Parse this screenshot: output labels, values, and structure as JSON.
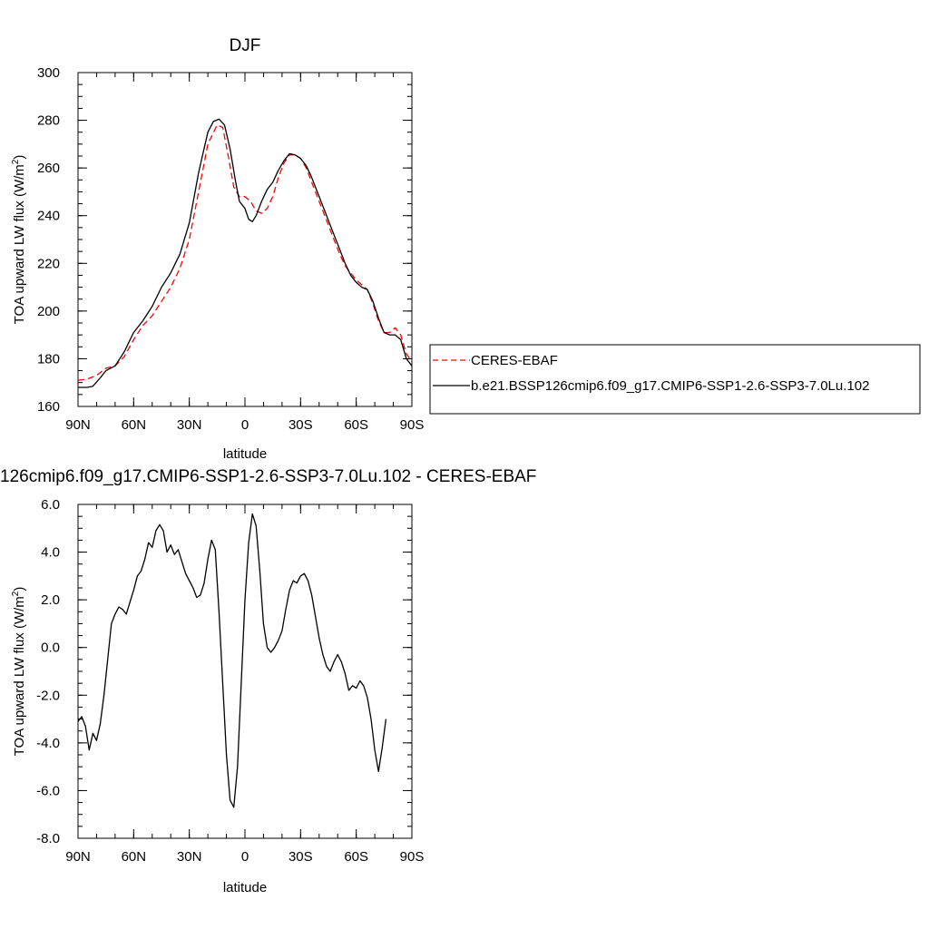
{
  "chart_data": [
    {
      "type": "line",
      "title": "DJF",
      "xlabel": "latitude",
      "ylabel_main": "TOA upward LW flux (W/m",
      "ylabel_sup": "2",
      "ylabel_close": ")",
      "xlim": [
        90,
        -90
      ],
      "ylim": [
        160,
        300
      ],
      "xticks": [
        90,
        60,
        30,
        0,
        -30,
        -60,
        -90
      ],
      "xtick_labels": [
        "90N",
        "60N",
        "30N",
        "0",
        "30S",
        "60S",
        "90S"
      ],
      "yticks": [
        160,
        180,
        200,
        220,
        240,
        260,
        280,
        300
      ],
      "ytick_labels": [
        "160",
        "180",
        "200",
        "220",
        "240",
        "260",
        "280",
        "300"
      ],
      "grid": false,
      "legend": "right",
      "series": [
        {
          "name": "CERES-EBAF",
          "color": "#ff0000",
          "dash": "dashed",
          "points": [
            [
              90,
              171
            ],
            [
              85,
              171.5
            ],
            [
              80,
              173
            ],
            [
              75,
              176
            ],
            [
              70,
              177
            ],
            [
              65,
              181
            ],
            [
              60,
              188
            ],
            [
              55,
              194
            ],
            [
              50,
              198
            ],
            [
              45,
              204
            ],
            [
              40,
              210
            ],
            [
              35,
              218
            ],
            [
              30,
              230
            ],
            [
              25,
              250
            ],
            [
              20,
              270
            ],
            [
              15,
              278
            ],
            [
              12,
              277
            ],
            [
              9,
              265
            ],
            [
              6,
              252
            ],
            [
              3,
              248
            ],
            [
              0,
              248
            ],
            [
              -3,
              246
            ],
            [
              -6,
              242
            ],
            [
              -9,
              241
            ],
            [
              -12,
              243
            ],
            [
              -15,
              248
            ],
            [
              -18,
              256
            ],
            [
              -21,
              262
            ],
            [
              -24,
              265.5
            ],
            [
              -27,
              265.5
            ],
            [
              -30,
              264
            ],
            [
              -33,
              260
            ],
            [
              -36,
              254
            ],
            [
              -39,
              248
            ],
            [
              -42,
              242
            ],
            [
              -45,
              236
            ],
            [
              -48,
              230
            ],
            [
              -51,
              224
            ],
            [
              -54,
              219
            ],
            [
              -57,
              216
            ],
            [
              -60,
              213
            ],
            [
              -63,
              211
            ],
            [
              -66,
              209
            ],
            [
              -69,
              203
            ],
            [
              -72,
              196
            ],
            [
              -75,
              191
            ],
            [
              -78,
              191
            ],
            [
              -81,
              193
            ],
            [
              -84,
              190
            ],
            [
              -87,
              182
            ],
            [
              -90,
              179
            ]
          ]
        },
        {
          "name": "b.e21.BSSP126cmip6.f09_g17.CMIP6-SSP1-2.6-SSP3-7.0Lu.102",
          "color": "#000000",
          "dash": "solid",
          "points": [
            [
              90,
              168
            ],
            [
              85,
              168
            ],
            [
              82,
              168.5
            ],
            [
              78,
              172
            ],
            [
              75,
              175
            ],
            [
              70,
              177
            ],
            [
              65,
              183
            ],
            [
              60,
              191
            ],
            [
              55,
              196
            ],
            [
              50,
              202
            ],
            [
              45,
              210
            ],
            [
              40,
              216
            ],
            [
              35,
              224
            ],
            [
              30,
              237
            ],
            [
              25,
              258
            ],
            [
              20,
              275
            ],
            [
              17,
              279.5
            ],
            [
              14,
              280.5
            ],
            [
              11,
              278
            ],
            [
              8,
              268
            ],
            [
              5,
              254
            ],
            [
              3,
              246
            ],
            [
              0,
              243
            ],
            [
              -2,
              238.5
            ],
            [
              -4,
              237.5
            ],
            [
              -6,
              240
            ],
            [
              -9,
              246
            ],
            [
              -12,
              251
            ],
            [
              -15,
              254
            ],
            [
              -18,
              259
            ],
            [
              -21,
              263
            ],
            [
              -24,
              266
            ],
            [
              -27,
              265.5
            ],
            [
              -30,
              264
            ],
            [
              -33,
              261
            ],
            [
              -36,
              256
            ],
            [
              -39,
              250
            ],
            [
              -42,
              244
            ],
            [
              -45,
              238
            ],
            [
              -48,
              232
            ],
            [
              -51,
              226
            ],
            [
              -54,
              220
            ],
            [
              -57,
              215
            ],
            [
              -60,
              212
            ],
            [
              -63,
              210
            ],
            [
              -66,
              209
            ],
            [
              -69,
              204
            ],
            [
              -72,
              197
            ],
            [
              -75,
              191
            ],
            [
              -78,
              190
            ],
            [
              -81,
              190
            ],
            [
              -84,
              188
            ],
            [
              -87,
              180
            ],
            [
              -90,
              177
            ]
          ]
        }
      ]
    },
    {
      "type": "line",
      "title": "126cmip6.f09_g17.CMIP6-SSP1-2.6-SSP3-7.0Lu.102 - CERES-EBAF",
      "xlabel": "latitude",
      "ylabel_main": "TOA upward LW flux (W/m",
      "ylabel_sup": "2",
      "ylabel_close": ")",
      "xlim": [
        90,
        -90
      ],
      "ylim": [
        -8,
        6
      ],
      "xticks": [
        90,
        60,
        30,
        0,
        -30,
        -60,
        -90
      ],
      "xtick_labels": [
        "90N",
        "60N",
        "30N",
        "0",
        "30S",
        "60S",
        "90S"
      ],
      "yticks": [
        -8,
        -6,
        -4,
        -2,
        0,
        2,
        4,
        6
      ],
      "ytick_labels": [
        "-8.0",
        "-6.0",
        "-4.0",
        "-2.0",
        "0.0",
        "2.0",
        "4.0",
        "6.0"
      ],
      "grid": false,
      "series": [
        {
          "color": "#000000",
          "dash": "solid",
          "points": [
            [
              90,
              -3.1
            ],
            [
              88,
              -2.9
            ],
            [
              86,
              -3.3
            ],
            [
              84,
              -4.3
            ],
            [
              82,
              -3.6
            ],
            [
              80,
              -3.9
            ],
            [
              78,
              -3.2
            ],
            [
              76,
              -2.0
            ],
            [
              74,
              -0.5
            ],
            [
              72,
              1.0
            ],
            [
              70,
              1.4
            ],
            [
              68,
              1.7
            ],
            [
              66,
              1.6
            ],
            [
              64,
              1.4
            ],
            [
              62,
              1.9
            ],
            [
              60,
              2.4
            ],
            [
              58,
              3.0
            ],
            [
              56,
              3.2
            ],
            [
              54,
              3.7
            ],
            [
              52,
              4.4
            ],
            [
              50,
              4.2
            ],
            [
              48,
              4.9
            ],
            [
              46,
              5.15
            ],
            [
              44,
              4.9
            ],
            [
              42,
              4.0
            ],
            [
              40,
              4.3
            ],
            [
              38,
              3.9
            ],
            [
              36,
              4.1
            ],
            [
              34,
              3.6
            ],
            [
              32,
              3.1
            ],
            [
              30,
              2.8
            ],
            [
              28,
              2.5
            ],
            [
              26,
              2.1
            ],
            [
              24,
              2.2
            ],
            [
              22,
              2.7
            ],
            [
              20,
              3.7
            ],
            [
              18,
              4.5
            ],
            [
              16,
              4.1
            ],
            [
              14,
              1.5
            ],
            [
              12,
              -1.5
            ],
            [
              10,
              -4.5
            ],
            [
              8,
              -6.4
            ],
            [
              6,
              -6.7
            ],
            [
              4,
              -5.0
            ],
            [
              2,
              -1.5
            ],
            [
              0,
              2.0
            ],
            [
              -2,
              4.4
            ],
            [
              -4,
              5.6
            ],
            [
              -6,
              5.1
            ],
            [
              -8,
              3.2
            ],
            [
              -10,
              1.0
            ],
            [
              -12,
              0.0
            ],
            [
              -14,
              -0.2
            ],
            [
              -16,
              0.0
            ],
            [
              -18,
              0.3
            ],
            [
              -20,
              0.7
            ],
            [
              -22,
              1.6
            ],
            [
              -24,
              2.4
            ],
            [
              -26,
              2.8
            ],
            [
              -28,
              2.7
            ],
            [
              -30,
              3.0
            ],
            [
              -32,
              3.1
            ],
            [
              -34,
              2.8
            ],
            [
              -36,
              2.2
            ],
            [
              -38,
              1.3
            ],
            [
              -40,
              0.4
            ],
            [
              -42,
              -0.3
            ],
            [
              -44,
              -0.8
            ],
            [
              -46,
              -1.0
            ],
            [
              -48,
              -0.6
            ],
            [
              -50,
              -0.3
            ],
            [
              -52,
              -0.6
            ],
            [
              -54,
              -1.1
            ],
            [
              -56,
              -1.8
            ],
            [
              -58,
              -1.6
            ],
            [
              -60,
              -1.7
            ],
            [
              -62,
              -1.4
            ],
            [
              -64,
              -1.6
            ],
            [
              -66,
              -2.1
            ],
            [
              -68,
              -3.0
            ],
            [
              -70,
              -4.3
            ],
            [
              -72,
              -5.2
            ],
            [
              -74,
              -4.2
            ],
            [
              -76,
              -3.0
            ]
          ]
        }
      ]
    }
  ]
}
